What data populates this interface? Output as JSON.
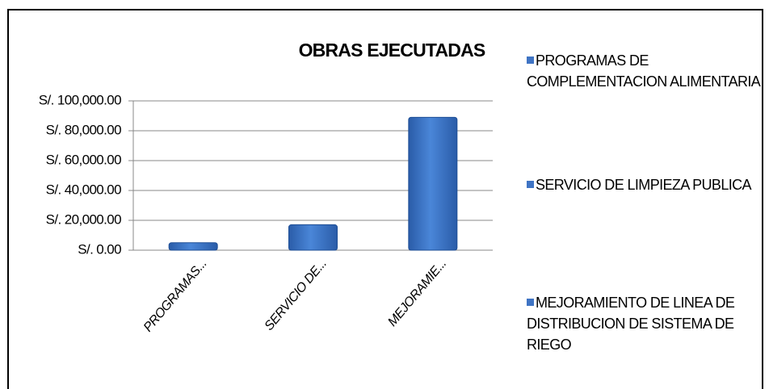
{
  "chart_data": {
    "type": "bar",
    "title": "OBRAS EJECUTADAS",
    "categories": [
      "PROGRAMAS...",
      "SERVICIO DE...",
      "MEJORAMIE..."
    ],
    "legend": [
      "PROGRAMAS DE COMPLEMENTACION ALIMENTARIA",
      "SERVICIO DE LIMPIEZA PUBLICA",
      "MEJORAMIENTO DE LINEA DE DISTRIBUCION DE SISTEMA DE RIEGO"
    ],
    "values": [
      5000,
      17000,
      89000
    ],
    "color": "#3f74c4",
    "ylim": [
      0,
      100000
    ],
    "yticks": [
      {
        "value": 0,
        "label": "S/. 0.00"
      },
      {
        "value": 20000,
        "label": "S/. 20,000.00"
      },
      {
        "value": 40000,
        "label": "S/. 40,000.00"
      },
      {
        "value": 60000,
        "label": "S/. 60,000.00"
      },
      {
        "value": 80000,
        "label": "S/. 80,000.00"
      },
      {
        "value": 100000,
        "label": "S/. 100,000.00"
      }
    ],
    "grid": true
  }
}
